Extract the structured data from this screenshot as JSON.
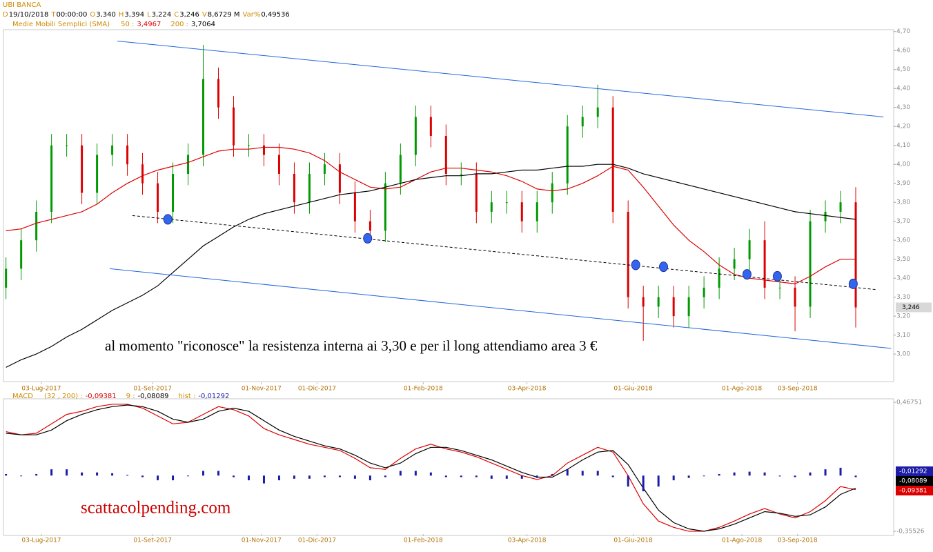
{
  "chart_data": [
    {
      "type": "candlestick",
      "title": "UBI BANCA",
      "info": [
        {
          "label": "D",
          "value": "19/10/2018"
        },
        {
          "label": "T",
          "value": "00:00:00"
        },
        {
          "label": "O",
          "value": "3,340"
        },
        {
          "label": "H",
          "value": "3,394"
        },
        {
          "label": "L",
          "value": "3,224"
        },
        {
          "label": "C",
          "value": "3,246"
        },
        {
          "label": "V",
          "value": "8,6729 M"
        },
        {
          "label": "Var%",
          "value": "0,49536"
        }
      ],
      "indicator_title": "Medie Mobili Semplici (SMA)",
      "x": [
        -14,
        -8,
        -2,
        4,
        10,
        16,
        22,
        28,
        34,
        40,
        46,
        52,
        58,
        64,
        70,
        76,
        82,
        88,
        94,
        100,
        106,
        112,
        118,
        124,
        130,
        136,
        142,
        148,
        154,
        160,
        166,
        172,
        178,
        184,
        190,
        196,
        202,
        208,
        214,
        220,
        226,
        232,
        238,
        244,
        250,
        256,
        262,
        268,
        274,
        280,
        286,
        292,
        298,
        304,
        310,
        316,
        322
      ],
      "open": [
        3.35,
        3.45,
        3.6,
        3.75,
        4.1,
        4.1,
        3.85,
        4.05,
        4.1,
        4.0,
        3.9,
        3.75,
        3.95,
        4.05,
        4.45,
        4.3,
        4.1,
        4.1,
        4.05,
        3.95,
        3.8,
        3.95,
        4.0,
        3.85,
        3.7,
        3.65,
        3.9,
        4.05,
        4.25,
        4.15,
        3.95,
        3.95,
        3.75,
        3.8,
        3.8,
        3.7,
        3.8,
        3.9,
        4.2,
        4.25,
        4.3,
        3.75,
        3.3,
        3.25,
        3.3,
        3.2,
        3.3,
        3.35,
        3.45,
        3.5,
        3.6,
        3.35,
        3.35,
        3.25,
        3.7,
        3.75,
        3.8
      ],
      "high": [
        3.51,
        3.66,
        3.81,
        4.16,
        4.16,
        4.16,
        4.11,
        4.16,
        4.16,
        4.06,
        3.96,
        4.01,
        4.11,
        4.63,
        4.51,
        4.36,
        4.16,
        4.16,
        4.11,
        4.01,
        4.01,
        4.06,
        4.06,
        3.91,
        3.76,
        3.96,
        4.11,
        4.31,
        4.31,
        4.21,
        4.01,
        4.01,
        3.86,
        3.86,
        3.86,
        3.86,
        3.96,
        4.26,
        4.31,
        4.42,
        4.36,
        3.81,
        3.36,
        3.36,
        3.36,
        3.36,
        3.41,
        3.51,
        3.56,
        3.66,
        3.7,
        3.41,
        3.41,
        3.76,
        3.81,
        3.86,
        3.88
      ],
      "low": [
        3.29,
        3.39,
        3.54,
        3.69,
        4.04,
        3.79,
        3.79,
        3.99,
        3.94,
        3.84,
        3.69,
        3.69,
        3.89,
        3.99,
        4.24,
        4.04,
        4.04,
        3.99,
        3.89,
        3.74,
        3.74,
        3.89,
        3.79,
        3.64,
        3.6,
        3.59,
        3.84,
        3.99,
        4.09,
        3.89,
        3.89,
        3.69,
        3.69,
        3.74,
        3.64,
        3.64,
        3.74,
        3.84,
        4.14,
        4.19,
        3.69,
        3.24,
        3.07,
        3.19,
        3.14,
        3.14,
        3.24,
        3.29,
        3.39,
        3.44,
        3.29,
        3.29,
        3.12,
        3.19,
        3.64,
        3.69,
        3.14
      ],
      "close": [
        3.45,
        3.6,
        3.75,
        4.1,
        4.1,
        3.85,
        4.05,
        4.1,
        4.0,
        3.9,
        3.75,
        3.95,
        4.05,
        4.45,
        4.3,
        4.1,
        4.1,
        4.05,
        3.95,
        3.8,
        3.95,
        4.0,
        3.85,
        3.7,
        3.65,
        3.9,
        4.05,
        4.25,
        4.15,
        3.95,
        3.95,
        3.75,
        3.8,
        3.8,
        3.7,
        3.8,
        3.9,
        4.2,
        4.25,
        4.3,
        3.75,
        3.3,
        3.25,
        3.3,
        3.2,
        3.3,
        3.35,
        3.45,
        3.5,
        3.6,
        3.35,
        3.35,
        3.25,
        3.7,
        3.75,
        3.8,
        3.246
      ],
      "up_color": "#009900",
      "down_color": "#dd0000",
      "series": [
        {
          "name": "50 :",
          "color": "#dd0000",
          "last": {
            "value": 3.4967,
            "label": "3,4967"
          },
          "values": [
            3.65,
            3.66,
            3.69,
            3.71,
            3.73,
            3.75,
            3.79,
            3.85,
            3.9,
            3.94,
            3.97,
            3.99,
            4.01,
            4.04,
            4.07,
            4.08,
            4.08,
            4.09,
            4.09,
            4.08,
            4.06,
            4.02,
            3.96,
            3.92,
            3.88,
            3.87,
            3.88,
            3.92,
            3.96,
            3.98,
            3.98,
            3.97,
            3.96,
            3.94,
            3.91,
            3.87,
            3.86,
            3.87,
            3.9,
            3.94,
            3.99,
            3.97,
            3.88,
            3.78,
            3.68,
            3.6,
            3.54,
            3.47,
            3.42,
            3.4,
            3.39,
            3.38,
            3.37,
            3.41,
            3.46,
            3.5,
            3.5
          ]
        },
        {
          "name": "200 :",
          "color": "#000000",
          "last": {
            "value": 3.7064,
            "label": "3,7064"
          },
          "values": [
            2.93,
            2.97,
            3.0,
            3.04,
            3.09,
            3.13,
            3.18,
            3.23,
            3.27,
            3.31,
            3.36,
            3.43,
            3.5,
            3.57,
            3.62,
            3.67,
            3.71,
            3.74,
            3.76,
            3.78,
            3.8,
            3.82,
            3.84,
            3.85,
            3.86,
            3.88,
            3.9,
            3.92,
            3.93,
            3.94,
            3.94,
            3.95,
            3.95,
            3.96,
            3.97,
            3.97,
            3.98,
            3.99,
            3.99,
            4.0,
            4.0,
            3.98,
            3.95,
            3.93,
            3.91,
            3.89,
            3.87,
            3.85,
            3.83,
            3.81,
            3.79,
            3.77,
            3.75,
            3.74,
            3.73,
            3.72,
            3.71
          ]
        }
      ],
      "trendlines": [
        {
          "x": [
            30,
            333
          ],
          "y": [
            4.65,
            4.25
          ],
          "color": "#2266dd",
          "dashed": false
        },
        {
          "x": [
            27,
            336
          ],
          "y": [
            3.45,
            3.03
          ],
          "color": "#2266dd",
          "dashed": false
        },
        {
          "x": [
            36,
            330
          ],
          "y": [
            3.73,
            3.34
          ],
          "color": "#000000",
          "dashed": true
        }
      ],
      "markers": {
        "x": [
          50,
          129,
          235,
          246,
          279,
          291,
          321
        ],
        "y": [
          3.71,
          3.61,
          3.47,
          3.46,
          3.42,
          3.41,
          3.37
        ],
        "color": "#3366ee"
      },
      "last_price": {
        "value": 3.246,
        "label": "3,246"
      },
      "annotation": "al momento \"riconosce\" la resistenza interna ai 3,30 e per il long attendiamo area 3 €",
      "xlim": [
        -15,
        337
      ],
      "ylim": [
        2.855,
        4.71
      ],
      "xticks": [
        {
          "value": 0,
          "label": "03-Lug-2017"
        },
        {
          "value": 44,
          "label": "01-Set-2017"
        },
        {
          "value": 87,
          "label": "01-Nov-2017"
        },
        {
          "value": 109,
          "label": "01-Dic-2017"
        },
        {
          "value": 151,
          "label": "01-Feb-2018"
        },
        {
          "value": 192,
          "label": "03-Apr-2018"
        },
        {
          "value": 234,
          "label": "01-Giu-2018"
        },
        {
          "value": 277,
          "label": "01-Ago-2018"
        },
        {
          "value": 299,
          "label": "03-Sep-2018"
        }
      ],
      "yticks": [
        {
          "value": 4.7,
          "label": "4,70"
        },
        {
          "value": 4.6,
          "label": "4,60"
        },
        {
          "value": 4.5,
          "label": "4,50"
        },
        {
          "value": 4.4,
          "label": "4,40"
        },
        {
          "value": 4.3,
          "label": "4,30"
        },
        {
          "value": 4.2,
          "label": "4,20"
        },
        {
          "value": 4.1,
          "label": "4,10"
        },
        {
          "value": 4.0,
          "label": "4,00"
        },
        {
          "value": 3.9,
          "label": "3,90"
        },
        {
          "value": 3.8,
          "label": "3,80"
        },
        {
          "value": 3.7,
          "label": "3,70"
        },
        {
          "value": 3.6,
          "label": "3,60"
        },
        {
          "value": 3.5,
          "label": "3,50"
        },
        {
          "value": 3.4,
          "label": "3,40"
        },
        {
          "value": 3.3,
          "label": "3,30"
        },
        {
          "value": 3.2,
          "label": "3,20"
        },
        {
          "value": 3.1,
          "label": "3,10"
        },
        {
          "value": 3.0,
          "label": "3,00"
        }
      ]
    },
    {
      "type": "macd",
      "title": "MACD",
      "watermark": "scattacolpending.com",
      "x": [
        -14,
        -8,
        -2,
        4,
        10,
        16,
        22,
        28,
        34,
        40,
        46,
        52,
        58,
        64,
        70,
        76,
        82,
        88,
        94,
        100,
        106,
        112,
        118,
        124,
        130,
        136,
        142,
        148,
        154,
        160,
        166,
        172,
        178,
        184,
        190,
        196,
        202,
        208,
        214,
        220,
        226,
        232,
        238,
        244,
        250,
        256,
        262,
        268,
        274,
        280,
        286,
        292,
        298,
        304,
        310,
        316,
        322
      ],
      "series": [
        {
          "name": "(32 , 200) :",
          "color": "#dd0000",
          "style": "line",
          "last": {
            "value": -0.09381,
            "label": "-0,09381"
          },
          "values": [
            0.28,
            0.26,
            0.27,
            0.33,
            0.39,
            0.41,
            0.44,
            0.455,
            0.455,
            0.43,
            0.38,
            0.33,
            0.34,
            0.39,
            0.44,
            0.42,
            0.38,
            0.3,
            0.26,
            0.23,
            0.2,
            0.18,
            0.16,
            0.11,
            0.05,
            0.04,
            0.11,
            0.17,
            0.2,
            0.17,
            0.15,
            0.12,
            0.08,
            0.04,
            0.0,
            -0.025,
            0.0,
            0.08,
            0.13,
            0.18,
            0.15,
            0.0,
            -0.18,
            -0.29,
            -0.33,
            -0.355,
            -0.355,
            -0.33,
            -0.29,
            -0.245,
            -0.21,
            -0.245,
            -0.27,
            -0.23,
            -0.16,
            -0.07,
            -0.09
          ]
        },
        {
          "name": "9 :",
          "color": "#000000",
          "style": "line",
          "last": {
            "value": -0.08089,
            "label": "-0,08089"
          },
          "values": [
            0.27,
            0.26,
            0.26,
            0.29,
            0.35,
            0.39,
            0.42,
            0.44,
            0.45,
            0.44,
            0.41,
            0.36,
            0.34,
            0.36,
            0.41,
            0.43,
            0.41,
            0.35,
            0.29,
            0.25,
            0.22,
            0.19,
            0.17,
            0.13,
            0.08,
            0.05,
            0.08,
            0.14,
            0.18,
            0.18,
            0.16,
            0.13,
            0.1,
            0.06,
            0.02,
            -0.01,
            -0.01,
            0.04,
            0.1,
            0.15,
            0.16,
            0.07,
            -0.08,
            -0.22,
            -0.3,
            -0.34,
            -0.355,
            -0.34,
            -0.31,
            -0.27,
            -0.23,
            -0.24,
            -0.26,
            -0.25,
            -0.2,
            -0.12,
            -0.08
          ]
        },
        {
          "name": "hist :",
          "color": "#1c1ca8",
          "style": "histogram",
          "last": {
            "value": -0.01292,
            "label": "-0,01292"
          },
          "values": [
            0.01,
            0,
            0.01,
            0.04,
            0.04,
            0.02,
            0.02,
            0.015,
            0.005,
            -0.01,
            -0.03,
            -0.03,
            0,
            0.03,
            0.03,
            -0.01,
            -0.03,
            -0.05,
            -0.03,
            -0.02,
            -0.02,
            -0.01,
            -0.01,
            -0.02,
            -0.03,
            -0.01,
            0.03,
            0.03,
            0.02,
            -0.01,
            -0.01,
            -0.01,
            -0.02,
            -0.02,
            -0.02,
            -0.015,
            0.01,
            0.04,
            0.03,
            0.03,
            -0.01,
            -0.07,
            -0.1,
            -0.07,
            -0.03,
            -0.015,
            0,
            0.01,
            0.02,
            0.025,
            0.02,
            -0.005,
            -0.01,
            0.02,
            0.04,
            0.05,
            -0.01
          ]
        }
      ],
      "xlim": [
        -15,
        337
      ],
      "ylim": [
        -0.35526,
        0.46751
      ],
      "xticks": [
        {
          "value": 0,
          "label": "03-Lug-2017"
        },
        {
          "value": 44,
          "label": "01-Set-2017"
        },
        {
          "value": 87,
          "label": "01-Nov-2017"
        },
        {
          "value": 109,
          "label": "01-Dic-2017"
        },
        {
          "value": 151,
          "label": "01-Feb-2018"
        },
        {
          "value": 192,
          "label": "03-Apr-2018"
        },
        {
          "value": 234,
          "label": "01-Giu-2018"
        },
        {
          "value": 277,
          "label": "01-Ago-2018"
        },
        {
          "value": 299,
          "label": "03-Sep-2018"
        }
      ],
      "yticks": [
        {
          "value": 0.46751,
          "label": "0,46751"
        },
        {
          "value": -0.35526,
          "label": "-0,35526"
        }
      ]
    }
  ]
}
